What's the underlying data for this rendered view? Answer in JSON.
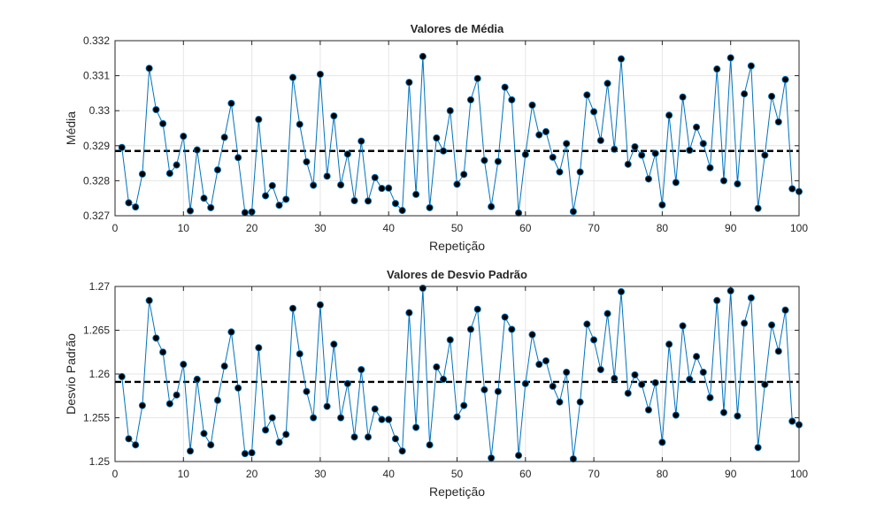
{
  "chart_data": [
    {
      "type": "line",
      "title": "Valores de Média",
      "xlabel": "Repetição",
      "ylabel": "Média",
      "xlim": [
        0,
        100
      ],
      "ylim": [
        0.327,
        0.332
      ],
      "xticks": [
        "0",
        "10",
        "20",
        "30",
        "40",
        "50",
        "60",
        "70",
        "80",
        "90",
        "100"
      ],
      "yticks": [
        "0.327",
        "0.328",
        "0.329",
        "0.33",
        "0.331",
        "0.332"
      ],
      "grid": true,
      "mean_line": 0.32885,
      "series_color": "#0072BD",
      "marker_color": "#000000",
      "x": [
        1,
        2,
        3,
        4,
        5,
        6,
        7,
        8,
        9,
        10,
        11,
        12,
        13,
        14,
        15,
        16,
        17,
        18,
        19,
        20,
        21,
        22,
        23,
        24,
        25,
        26,
        27,
        28,
        29,
        30,
        31,
        32,
        33,
        34,
        35,
        36,
        37,
        38,
        39,
        40,
        41,
        42,
        43,
        44,
        45,
        46,
        47,
        48,
        49,
        50,
        51,
        52,
        53,
        54,
        55,
        56,
        57,
        58,
        59,
        60,
        61,
        62,
        63,
        64,
        65,
        66,
        67,
        68,
        69,
        70,
        71,
        72,
        73,
        74,
        75,
        76,
        77,
        78,
        79,
        80,
        81,
        82,
        83,
        84,
        85,
        86,
        87,
        88,
        89,
        90,
        91,
        92,
        93,
        94,
        95,
        96,
        97,
        98,
        99,
        100
      ],
      "values": [
        0.32895,
        0.32737,
        0.32725,
        0.32819,
        0.33121,
        0.33003,
        0.32963,
        0.32821,
        0.32845,
        0.32927,
        0.32714,
        0.32888,
        0.3275,
        0.32723,
        0.32831,
        0.32924,
        0.33021,
        0.32866,
        0.32709,
        0.32711,
        0.32975,
        0.32757,
        0.32786,
        0.3273,
        0.32747,
        0.33095,
        0.32961,
        0.32854,
        0.32787,
        0.33104,
        0.32813,
        0.32985,
        0.32788,
        0.32876,
        0.32743,
        0.32913,
        0.32742,
        0.32809,
        0.32778,
        0.32779,
        0.32735,
        0.32715,
        0.33081,
        0.32761,
        0.33155,
        0.32723,
        0.32922,
        0.32885,
        0.33,
        0.3279,
        0.32818,
        0.33031,
        0.33092,
        0.32858,
        0.32726,
        0.32855,
        0.33067,
        0.33031,
        0.32708,
        0.32875,
        0.33016,
        0.32931,
        0.3294,
        0.32867,
        0.32825,
        0.32906,
        0.32712,
        0.32825,
        0.33045,
        0.32997,
        0.32915,
        0.33078,
        0.3289,
        0.33148,
        0.32847,
        0.32897,
        0.32873,
        0.32805,
        0.32878,
        0.32731,
        0.32987,
        0.32795,
        0.33039,
        0.32887,
        0.32953,
        0.32906,
        0.32837,
        0.33119,
        0.328,
        0.33151,
        0.32791,
        0.33048,
        0.33128,
        0.32721,
        0.32873,
        0.33041,
        0.32968,
        0.33089,
        0.32777,
        0.32769
      ]
    },
    {
      "type": "line",
      "title": "Valores de Desvio Padrão",
      "xlabel": "Repetição",
      "ylabel": "Desvio Padrão",
      "xlim": [
        0,
        100
      ],
      "ylim": [
        1.25,
        1.27
      ],
      "xticks": [
        "0",
        "10",
        "20",
        "30",
        "40",
        "50",
        "60",
        "70",
        "80",
        "90",
        "100"
      ],
      "yticks": [
        "1.25",
        "1.255",
        "1.26",
        "1.265",
        "1.27"
      ],
      "grid": true,
      "mean_line": 1.2591,
      "series_color": "#0072BD",
      "marker_color": "#000000",
      "x": [
        1,
        2,
        3,
        4,
        5,
        6,
        7,
        8,
        9,
        10,
        11,
        12,
        13,
        14,
        15,
        16,
        17,
        18,
        19,
        20,
        21,
        22,
        23,
        24,
        25,
        26,
        27,
        28,
        29,
        30,
        31,
        32,
        33,
        34,
        35,
        36,
        37,
        38,
        39,
        40,
        41,
        42,
        43,
        44,
        45,
        46,
        47,
        48,
        49,
        50,
        51,
        52,
        53,
        54,
        55,
        56,
        57,
        58,
        59,
        60,
        61,
        62,
        63,
        64,
        65,
        66,
        67,
        68,
        69,
        70,
        71,
        72,
        73,
        74,
        75,
        76,
        77,
        78,
        79,
        80,
        81,
        82,
        83,
        84,
        85,
        86,
        87,
        88,
        89,
        90,
        91,
        92,
        93,
        94,
        95,
        96,
        97,
        98,
        99,
        100
      ],
      "values": [
        1.2597,
        1.2526,
        1.2519,
        1.2564,
        1.2684,
        1.2641,
        1.2625,
        1.2566,
        1.2576,
        1.2611,
        1.2512,
        1.2594,
        1.2532,
        1.2519,
        1.257,
        1.2609,
        1.2648,
        1.2584,
        1.2509,
        1.251,
        1.263,
        1.2536,
        1.255,
        1.2522,
        1.2531,
        1.2675,
        1.2623,
        1.258,
        1.255,
        1.2679,
        1.2563,
        1.2634,
        1.255,
        1.2589,
        1.2528,
        1.2605,
        1.2528,
        1.256,
        1.2548,
        1.2548,
        1.2526,
        1.2512,
        1.267,
        1.2539,
        1.2698,
        1.2519,
        1.2608,
        1.2594,
        1.2639,
        1.2551,
        1.2564,
        1.2651,
        1.2674,
        1.2582,
        1.2504,
        1.258,
        1.2665,
        1.2651,
        1.2507,
        1.2589,
        1.2645,
        1.2611,
        1.2615,
        1.2586,
        1.2568,
        1.2602,
        1.2503,
        1.2568,
        1.2657,
        1.2639,
        1.2605,
        1.2669,
        1.2595,
        1.2694,
        1.2578,
        1.2599,
        1.2588,
        1.2559,
        1.259,
        1.2522,
        1.2634,
        1.2553,
        1.2655,
        1.2594,
        1.262,
        1.2602,
        1.2573,
        1.2684,
        1.2556,
        1.2695,
        1.2552,
        1.2658,
        1.2687,
        1.2516,
        1.2588,
        1.2656,
        1.2626,
        1.2673,
        1.2546,
        1.2542
      ]
    }
  ]
}
